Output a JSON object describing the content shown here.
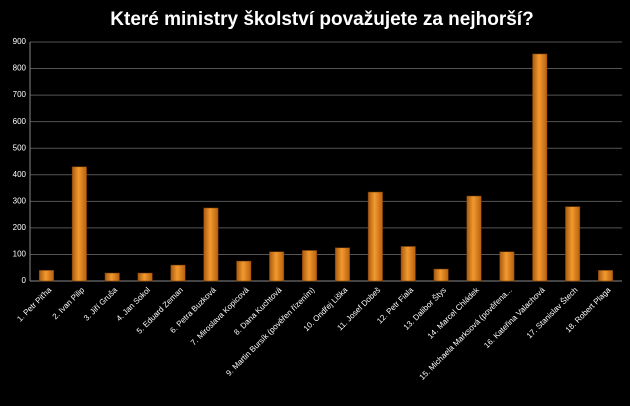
{
  "chart_data": {
    "type": "bar",
    "title": "Které ministry školství považujete za nejhorší?",
    "categories": [
      "1. Petr Piťha",
      "2. Ivan Pilip",
      "3. Jiří Gruša",
      "4. Jan Sokol",
      "5. Eduard Zeman",
      "6. Petra Buzková",
      "7. Miroslava Kopicová",
      "8. Dana Kuchtová",
      "9. Martin Bursík (pověřen řízením)",
      "10. Ondřej Liška",
      "11. Josef Dobeš",
      "12. Petr Fiala",
      "13. Dalibor Štys",
      "14. Marcel Chládek",
      "15. Michaela Marksová (pověřena...",
      "16. Kateřina Valachová",
      "17. Stanislav Štech",
      "18. Robert Plaga"
    ],
    "values": [
      40,
      430,
      30,
      30,
      60,
      275,
      75,
      110,
      115,
      125,
      335,
      130,
      45,
      320,
      110,
      855,
      280,
      40
    ],
    "color": "#f29a2e",
    "ylim": [
      0,
      900
    ],
    "yticks": [
      0,
      100,
      200,
      300,
      400,
      500,
      600,
      700,
      800,
      900
    ],
    "grid": true
  }
}
